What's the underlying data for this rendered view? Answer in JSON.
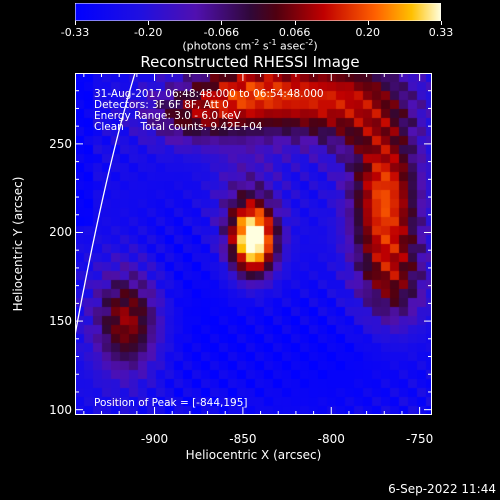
{
  "colorbar": {
    "ticks": [
      "-0.33",
      "-0.20",
      "-0.066",
      "0.066",
      "0.20",
      "0.33"
    ],
    "units_pre": "(photons cm",
    "units_sup1": "-2",
    "units_mid": " s",
    "units_sup2": "-1",
    "units_mid2": " asec",
    "units_sup3": "-2",
    "units_post": ")"
  },
  "title": "Reconstructed RHESSI Image",
  "info": {
    "time": "31-Aug-2017 06:48:48.000 to 06:54:48.000",
    "detectors": "Detectors: 3F 6F 8F, Att 0",
    "energy": "Energy Range: 3.0 - 6.0 keV",
    "clean": "Clean     Total counts: 9.42E+04",
    "peak": "Position of Peak = [-844,195]"
  },
  "axes": {
    "xlabel": "Heliocentric X (arcsec)",
    "ylabel": "Heliocentric Y (arcsec)",
    "xticks": [
      "-900",
      "-850",
      "-800",
      "-750"
    ],
    "yticks": [
      "250",
      "200",
      "150",
      "100"
    ],
    "xrange": [
      -945,
      -743
    ],
    "yrange": [
      97,
      290
    ]
  },
  "peak": {
    "x": -844,
    "y": 195
  },
  "timestamp": "6-Sep-2022 11:44"
}
